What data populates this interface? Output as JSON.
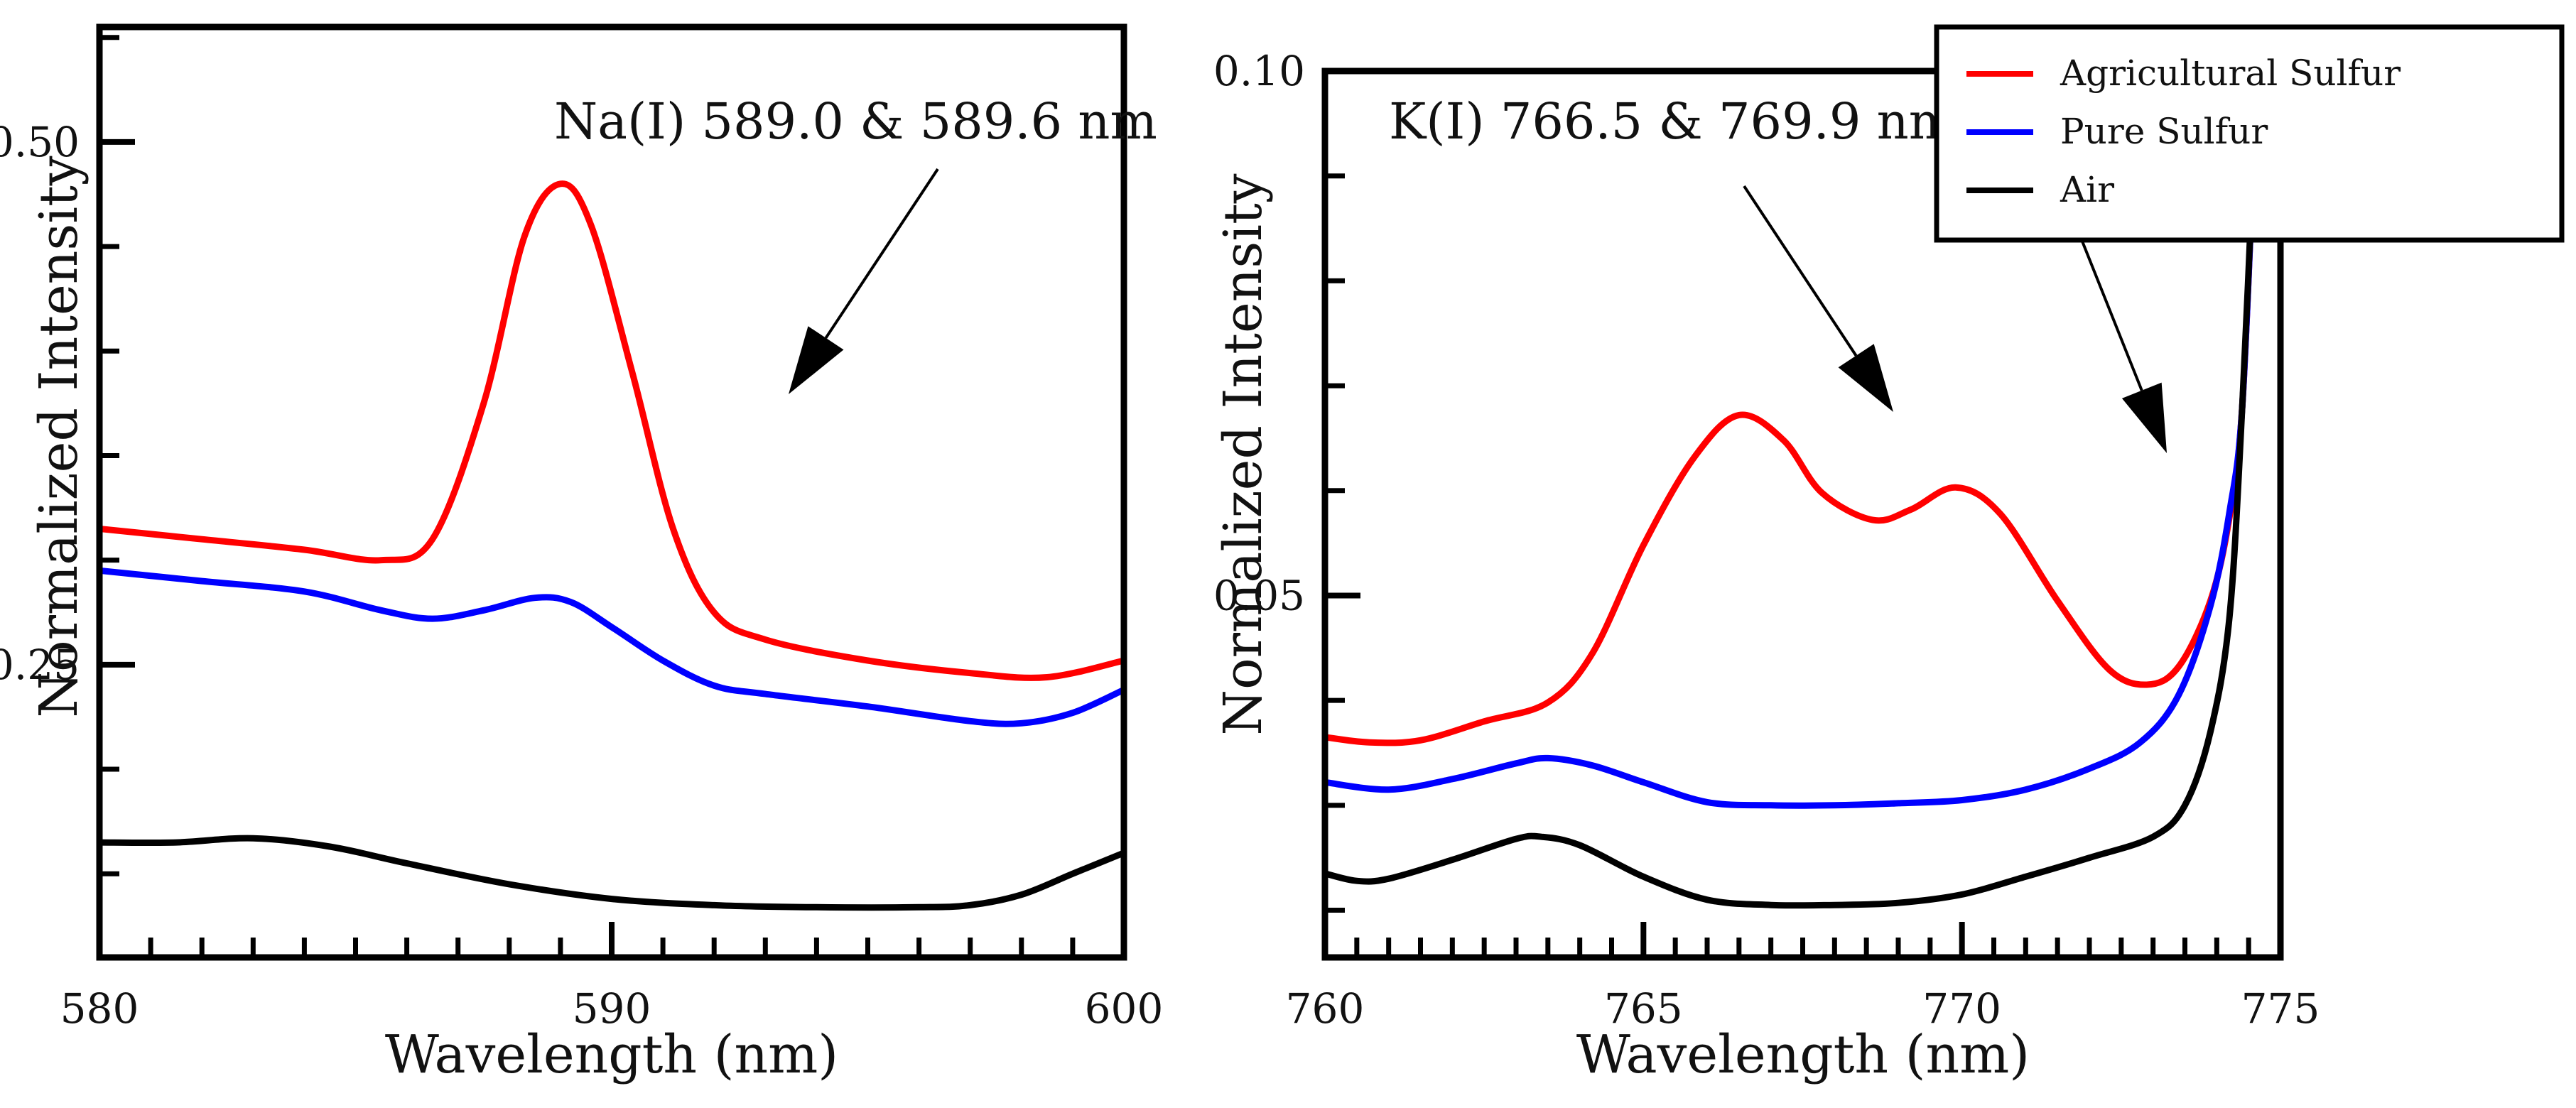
{
  "chart_data": [
    {
      "type": "line",
      "title": "",
      "xlabel": "Wavelength (nm)",
      "ylabel": "Normalized Intensity",
      "xlim": [
        580,
        600
      ],
      "ylim": [
        0.11,
        0.555
      ],
      "x_ticks": [
        580,
        590,
        600
      ],
      "y_ticks": [
        0.25,
        0.5
      ],
      "x_tick_labels": [
        "580",
        "590",
        "600"
      ],
      "y_tick_labels": [
        "0.25",
        "0.50"
      ],
      "grid": false,
      "annotation": "Na(I) 589.0 & 589.6 nm",
      "series": [
        {
          "name": "Agricultural Sulfur",
          "color": "#ff0000",
          "x": [
            580,
            582,
            584,
            585.5,
            586.5,
            587.5,
            588.3,
            589.0,
            589.6,
            590.4,
            591.2,
            592,
            593,
            595,
            597,
            598.5,
            600
          ],
          "y": [
            0.315,
            0.31,
            0.305,
            0.3,
            0.31,
            0.375,
            0.455,
            0.48,
            0.46,
            0.39,
            0.315,
            0.275,
            0.262,
            0.252,
            0.246,
            0.244,
            0.252
          ]
        },
        {
          "name": "Pure Sulfur",
          "color": "#0000ff",
          "x": [
            580,
            582,
            584,
            585.5,
            586.5,
            587.5,
            588.5,
            589.2,
            590,
            591,
            592,
            593,
            595,
            597,
            598,
            599,
            600
          ],
          "y": [
            0.295,
            0.29,
            0.285,
            0.276,
            0.272,
            0.276,
            0.282,
            0.28,
            0.268,
            0.252,
            0.24,
            0.236,
            0.23,
            0.223,
            0.222,
            0.227,
            0.238
          ]
        },
        {
          "name": "Air",
          "color": "#000000",
          "x": [
            580,
            581.5,
            583,
            584.5,
            586,
            588,
            590,
            592,
            594,
            596,
            597,
            598,
            599,
            600
          ],
          "y": [
            0.165,
            0.165,
            0.167,
            0.163,
            0.155,
            0.145,
            0.138,
            0.135,
            0.134,
            0.134,
            0.135,
            0.14,
            0.15,
            0.16
          ]
        }
      ]
    },
    {
      "type": "line",
      "title": "",
      "xlabel": "Wavelength (nm)",
      "ylabel": "Normalized Intensity",
      "xlim": [
        760,
        775
      ],
      "ylim": [
        0.0155,
        0.1
      ],
      "x_ticks": [
        760,
        765,
        770,
        775
      ],
      "y_ticks": [
        0.05,
        0.1
      ],
      "x_tick_labels": [
        "760",
        "765",
        "770",
        "775"
      ],
      "y_tick_labels": [
        "0.05",
        "0.10"
      ],
      "grid": false,
      "annotation": "K(I) 766.5 & 769.9 nm",
      "legend": {
        "position": "top-right",
        "entries": [
          "Agricultural Sulfur",
          "Pure Sulfur",
          "Air"
        ]
      },
      "series": [
        {
          "name": "Agricultural Sulfur",
          "color": "#ff0000",
          "x": [
            760,
            760.7,
            761.5,
            762.5,
            763.5,
            764.2,
            765,
            765.8,
            766.5,
            767.2,
            767.8,
            768.6,
            769.2,
            769.9,
            770.6,
            771.5,
            772.3,
            772.9,
            773.4,
            773.9,
            774.2,
            774.4,
            774.6
          ],
          "y": [
            0.0365,
            0.036,
            0.0362,
            0.038,
            0.0398,
            0.0445,
            0.0548,
            0.0632,
            0.0672,
            0.0648,
            0.0598,
            0.0572,
            0.0582,
            0.0603,
            0.0578,
            0.0495,
            0.043,
            0.0415,
            0.0432,
            0.0495,
            0.0575,
            0.068,
            0.095
          ]
        },
        {
          "name": "Pure Sulfur",
          "color": "#0000ff",
          "x": [
            760,
            761,
            762,
            763,
            763.5,
            764.2,
            765,
            766,
            767,
            768,
            769,
            770,
            771,
            772,
            772.8,
            773.4,
            773.9,
            774.2,
            774.4,
            774.6
          ],
          "y": [
            0.0322,
            0.0315,
            0.0325,
            0.034,
            0.0345,
            0.0338,
            0.0322,
            0.0303,
            0.03,
            0.03,
            0.0302,
            0.0305,
            0.0315,
            0.0335,
            0.036,
            0.0405,
            0.049,
            0.058,
            0.068,
            0.095
          ]
        },
        {
          "name": "Air",
          "color": "#000000",
          "x": [
            760,
            760.5,
            761,
            762,
            763,
            763.4,
            764,
            765,
            766,
            767,
            768,
            769,
            770,
            771,
            772,
            773,
            773.5,
            773.9,
            774.2,
            774.4,
            774.6
          ],
          "y": [
            0.0235,
            0.0228,
            0.023,
            0.0248,
            0.0268,
            0.027,
            0.0262,
            0.0232,
            0.021,
            0.0205,
            0.0205,
            0.0207,
            0.0215,
            0.0232,
            0.025,
            0.027,
            0.03,
            0.037,
            0.048,
            0.068,
            0.095
          ]
        }
      ]
    }
  ]
}
